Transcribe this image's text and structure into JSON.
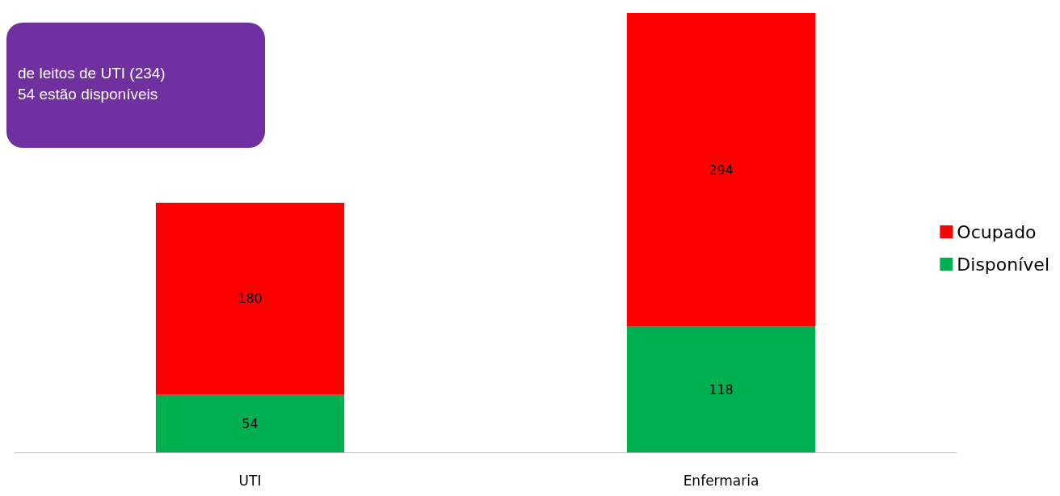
{
  "chart_data": {
    "type": "bar",
    "stacked": true,
    "categories": [
      "UTI",
      "Enfermaria"
    ],
    "series": [
      {
        "name": "Disponível",
        "color": "#00b050",
        "values": [
          54,
          118
        ]
      },
      {
        "name": "Ocupado",
        "color": "#ff0000",
        "values": [
          180,
          294
        ]
      }
    ],
    "data_labels": true,
    "legend": "right",
    "annotations": [
      "de leitos de UTI (234)",
      "54 estão disponíveis"
    ]
  }
}
